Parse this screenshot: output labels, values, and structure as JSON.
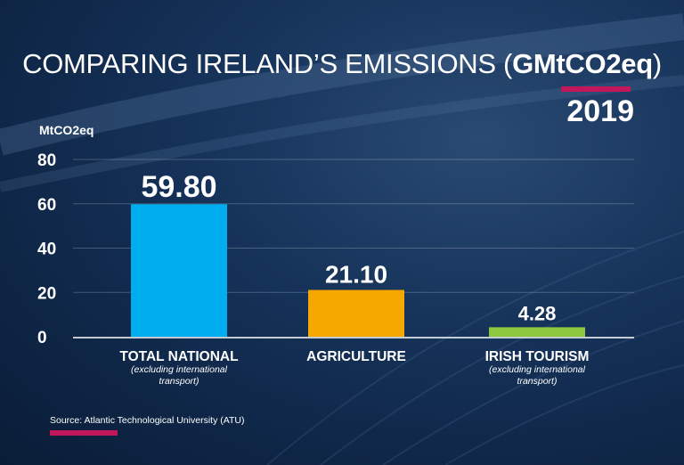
{
  "title_main": "COMPARING IRELAND’S EMISSIONS (",
  "title_bold": "GMtCO2eq",
  "title_close": ")",
  "year": "2019",
  "source": "Source: Atlantic Technological University (ATU)",
  "colors": {
    "accent_magenta": "#c2185b",
    "background": "#16335a"
  },
  "chart_data": {
    "type": "bar",
    "ylabel": "MtCO2eq",
    "ylim": [
      0,
      80
    ],
    "yticks": [
      0,
      20,
      40,
      60,
      80
    ],
    "grid": true,
    "categories": [
      "TOTAL NATIONAL",
      "AGRICULTURE",
      "IRISH TOURISM"
    ],
    "category_notes": [
      "(excluding international transport)",
      "",
      "(excluding international transport)"
    ],
    "values": [
      59.8,
      21.1,
      4.28
    ],
    "value_labels": [
      "59.80",
      "21.10",
      "4.28"
    ],
    "colors": [
      "#00aeef",
      "#f7a800",
      "#8dc63f"
    ]
  }
}
